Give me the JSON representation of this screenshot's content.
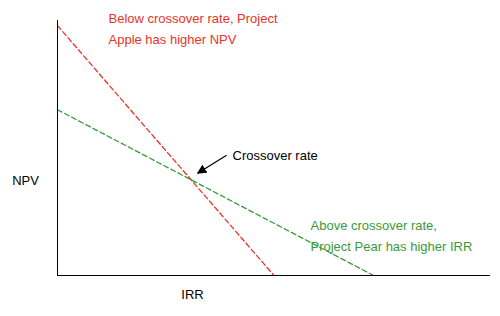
{
  "chart_data": {
    "type": "line",
    "xlabel": "IRR",
    "ylabel": "NPV",
    "xlim": [
      0,
      100
    ],
    "ylim": [
      0,
      100
    ],
    "xticks": [],
    "yticks": [],
    "tick_labels": false,
    "series": [
      {
        "color": "#e8332a",
        "line_style": "dashed",
        "x": [
          0,
          50
        ],
        "values": [
          98,
          0
        ]
      },
      {
        "color": "#3a9a3a",
        "line_style": "dashed",
        "x": [
          0,
          73
        ],
        "values": [
          65,
          0
        ]
      }
    ],
    "annotations": [
      "Below crossover rate, Project\nApple has higher NPV",
      "Crossover rate",
      "Above crossover rate,\nProject Pear has higher IRR"
    ]
  }
}
